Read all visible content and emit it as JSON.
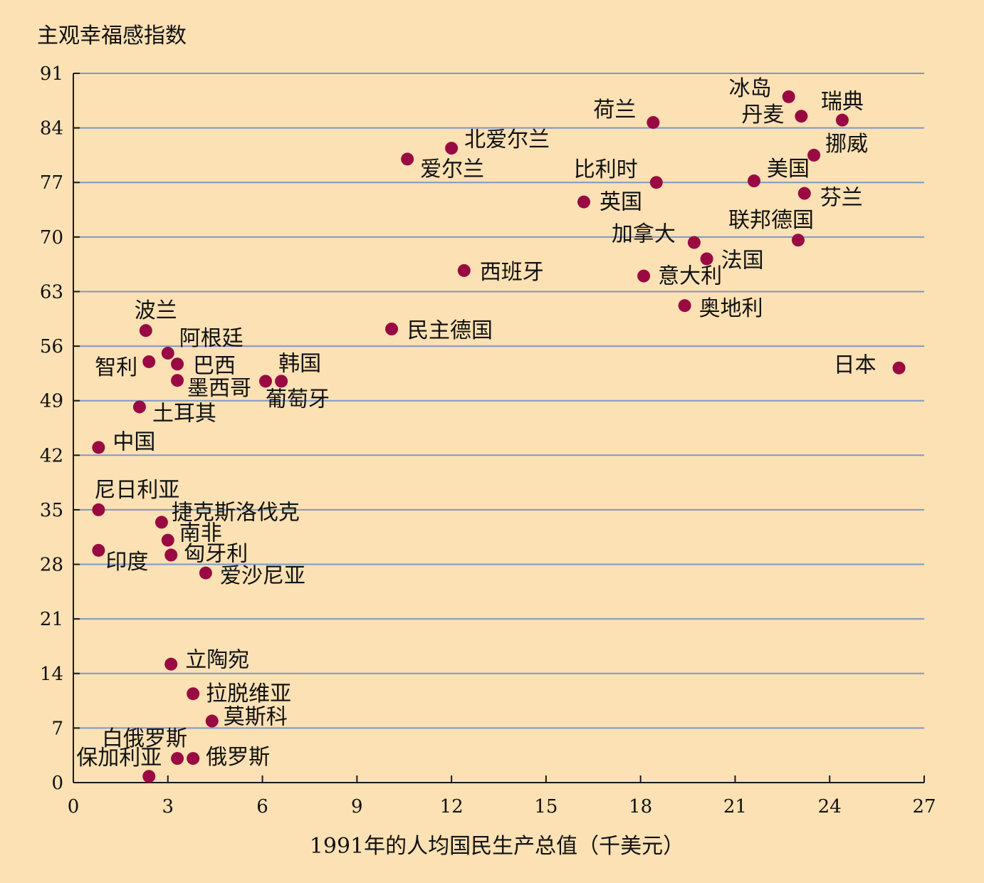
{
  "chart_data": {
    "type": "scatter",
    "title": "",
    "ylabel": "主观幸福感指数",
    "xlabel": "1991年的人均国民生产总值（千美元）",
    "xlim": [
      0,
      27
    ],
    "ylim": [
      0,
      91
    ],
    "xticks": [
      0,
      3,
      6,
      9,
      12,
      15,
      18,
      21,
      24,
      27
    ],
    "yticks": [
      0,
      7,
      14,
      21,
      28,
      35,
      42,
      49,
      56,
      63,
      70,
      77,
      84,
      91
    ],
    "grid": true,
    "marker_color": "#9a0a42",
    "points": [
      {
        "label": "冰岛",
        "x": 22.7,
        "y": 88.0
      },
      {
        "label": "瑞典",
        "x": 24.4,
        "y": 85.0
      },
      {
        "label": "丹麦",
        "x": 23.1,
        "y": 85.5
      },
      {
        "label": "荷兰",
        "x": 18.4,
        "y": 84.7
      },
      {
        "label": "北爱尔兰",
        "x": 12.0,
        "y": 81.4
      },
      {
        "label": "挪威",
        "x": 23.5,
        "y": 80.5
      },
      {
        "label": "爱尔兰",
        "x": 10.6,
        "y": 80.0
      },
      {
        "label": "比利时",
        "x": 18.5,
        "y": 77.0
      },
      {
        "label": "美国",
        "x": 21.6,
        "y": 77.2
      },
      {
        "label": "英国",
        "x": 16.2,
        "y": 74.5
      },
      {
        "label": "芬兰",
        "x": 23.2,
        "y": 75.6
      },
      {
        "label": "联邦德国",
        "x": 23.0,
        "y": 69.6
      },
      {
        "label": "加拿大",
        "x": 19.7,
        "y": 69.3
      },
      {
        "label": "法国",
        "x": 20.1,
        "y": 67.2
      },
      {
        "label": "西班牙",
        "x": 12.4,
        "y": 65.7
      },
      {
        "label": "意大利",
        "x": 18.1,
        "y": 65.0
      },
      {
        "label": "奥地利",
        "x": 19.4,
        "y": 61.2
      },
      {
        "label": "波兰",
        "x": 2.3,
        "y": 58.0
      },
      {
        "label": "民主德国",
        "x": 10.1,
        "y": 58.2
      },
      {
        "label": "阿根廷",
        "x": 3.0,
        "y": 55.1
      },
      {
        "label": "智利",
        "x": 2.4,
        "y": 54.0
      },
      {
        "label": "巴西",
        "x": 3.3,
        "y": 53.7
      },
      {
        "label": "日本",
        "x": 26.2,
        "y": 53.2
      },
      {
        "label": "墨西哥",
        "x": 3.3,
        "y": 51.6
      },
      {
        "label": "韩国",
        "x": 6.6,
        "y": 51.5
      },
      {
        "label": "葡萄牙",
        "x": 6.1,
        "y": 51.5
      },
      {
        "label": "土耳其",
        "x": 2.1,
        "y": 48.2
      },
      {
        "label": "中国",
        "x": 0.8,
        "y": 43.0
      },
      {
        "label": "尼日利亚",
        "x": 0.8,
        "y": 35.0
      },
      {
        "label": "捷克斯洛伐克",
        "x": 2.8,
        "y": 33.4
      },
      {
        "label": "南非",
        "x": 3.0,
        "y": 31.1
      },
      {
        "label": "印度",
        "x": 0.8,
        "y": 29.8
      },
      {
        "label": "匈牙利",
        "x": 3.1,
        "y": 29.2
      },
      {
        "label": "爱沙尼亚",
        "x": 4.2,
        "y": 26.9
      },
      {
        "label": "立陶宛",
        "x": 3.1,
        "y": 15.2
      },
      {
        "label": "拉脱维亚",
        "x": 3.8,
        "y": 11.4
      },
      {
        "label": "莫斯科",
        "x": 4.4,
        "y": 7.9
      },
      {
        "label": "白俄罗斯",
        "x": 3.3,
        "y": 3.1
      },
      {
        "label": "俄罗斯",
        "x": 3.8,
        "y": 3.1
      },
      {
        "label": "保加利亚",
        "x": 2.4,
        "y": 0.8
      }
    ]
  }
}
